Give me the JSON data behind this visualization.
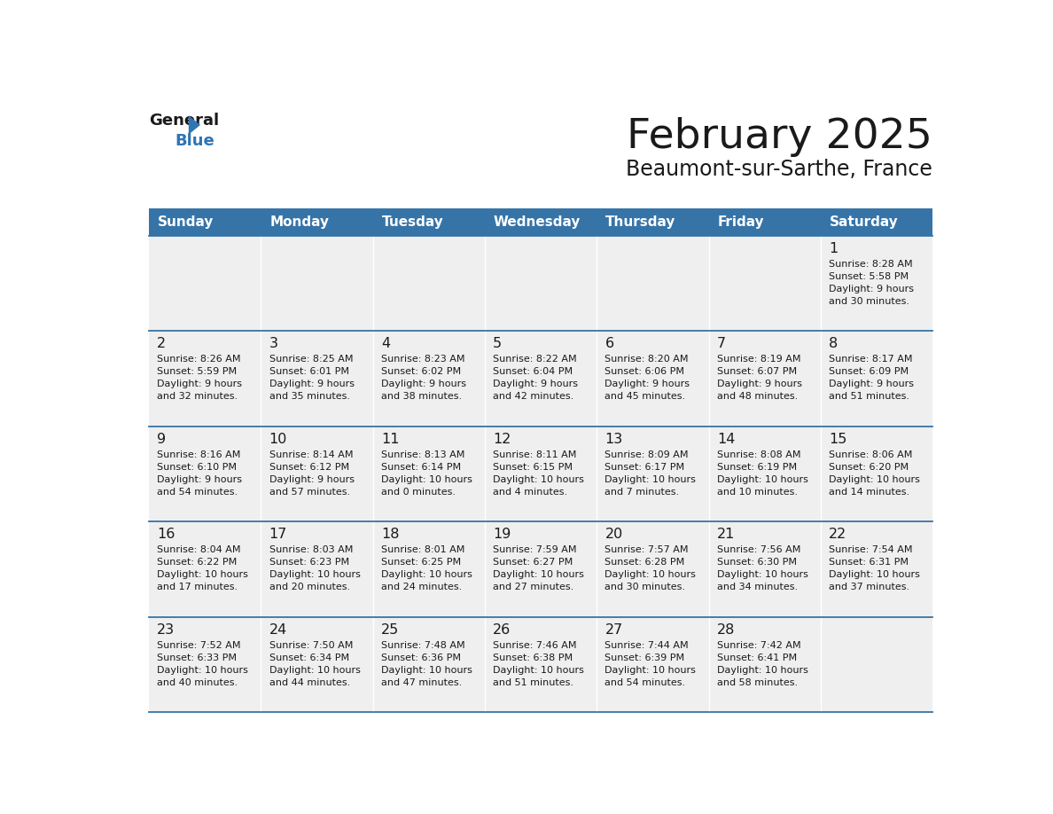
{
  "title": "February 2025",
  "subtitle": "Beaumont-sur-Sarthe, France",
  "days_of_week": [
    "Sunday",
    "Monday",
    "Tuesday",
    "Wednesday",
    "Thursday",
    "Friday",
    "Saturday"
  ],
  "header_bg": "#3674A8",
  "header_text": "#FFFFFF",
  "row_bg": "#EFEFEF",
  "cell_border_color": "#3674A8",
  "day_number_color": "#1a1a1a",
  "info_text_color": "#1a1a1a",
  "title_color": "#1a1a1a",
  "subtitle_color": "#1a1a1a",
  "logo_general_color": "#1a1a1a",
  "logo_blue_color": "#2E75B6",
  "logo_triangle_color": "#2E75B6",
  "weeks": [
    [
      {
        "day": null,
        "sunrise": null,
        "sunset": null,
        "daylight": null
      },
      {
        "day": null,
        "sunrise": null,
        "sunset": null,
        "daylight": null
      },
      {
        "day": null,
        "sunrise": null,
        "sunset": null,
        "daylight": null
      },
      {
        "day": null,
        "sunrise": null,
        "sunset": null,
        "daylight": null
      },
      {
        "day": null,
        "sunrise": null,
        "sunset": null,
        "daylight": null
      },
      {
        "day": null,
        "sunrise": null,
        "sunset": null,
        "daylight": null
      },
      {
        "day": 1,
        "sunrise": "8:28 AM",
        "sunset": "5:58 PM",
        "daylight": "9 hours\nand 30 minutes."
      }
    ],
    [
      {
        "day": 2,
        "sunrise": "8:26 AM",
        "sunset": "5:59 PM",
        "daylight": "9 hours\nand 32 minutes."
      },
      {
        "day": 3,
        "sunrise": "8:25 AM",
        "sunset": "6:01 PM",
        "daylight": "9 hours\nand 35 minutes."
      },
      {
        "day": 4,
        "sunrise": "8:23 AM",
        "sunset": "6:02 PM",
        "daylight": "9 hours\nand 38 minutes."
      },
      {
        "day": 5,
        "sunrise": "8:22 AM",
        "sunset": "6:04 PM",
        "daylight": "9 hours\nand 42 minutes."
      },
      {
        "day": 6,
        "sunrise": "8:20 AM",
        "sunset": "6:06 PM",
        "daylight": "9 hours\nand 45 minutes."
      },
      {
        "day": 7,
        "sunrise": "8:19 AM",
        "sunset": "6:07 PM",
        "daylight": "9 hours\nand 48 minutes."
      },
      {
        "day": 8,
        "sunrise": "8:17 AM",
        "sunset": "6:09 PM",
        "daylight": "9 hours\nand 51 minutes."
      }
    ],
    [
      {
        "day": 9,
        "sunrise": "8:16 AM",
        "sunset": "6:10 PM",
        "daylight": "9 hours\nand 54 minutes."
      },
      {
        "day": 10,
        "sunrise": "8:14 AM",
        "sunset": "6:12 PM",
        "daylight": "9 hours\nand 57 minutes."
      },
      {
        "day": 11,
        "sunrise": "8:13 AM",
        "sunset": "6:14 PM",
        "daylight": "10 hours\nand 0 minutes."
      },
      {
        "day": 12,
        "sunrise": "8:11 AM",
        "sunset": "6:15 PM",
        "daylight": "10 hours\nand 4 minutes."
      },
      {
        "day": 13,
        "sunrise": "8:09 AM",
        "sunset": "6:17 PM",
        "daylight": "10 hours\nand 7 minutes."
      },
      {
        "day": 14,
        "sunrise": "8:08 AM",
        "sunset": "6:19 PM",
        "daylight": "10 hours\nand 10 minutes."
      },
      {
        "day": 15,
        "sunrise": "8:06 AM",
        "sunset": "6:20 PM",
        "daylight": "10 hours\nand 14 minutes."
      }
    ],
    [
      {
        "day": 16,
        "sunrise": "8:04 AM",
        "sunset": "6:22 PM",
        "daylight": "10 hours\nand 17 minutes."
      },
      {
        "day": 17,
        "sunrise": "8:03 AM",
        "sunset": "6:23 PM",
        "daylight": "10 hours\nand 20 minutes."
      },
      {
        "day": 18,
        "sunrise": "8:01 AM",
        "sunset": "6:25 PM",
        "daylight": "10 hours\nand 24 minutes."
      },
      {
        "day": 19,
        "sunrise": "7:59 AM",
        "sunset": "6:27 PM",
        "daylight": "10 hours\nand 27 minutes."
      },
      {
        "day": 20,
        "sunrise": "7:57 AM",
        "sunset": "6:28 PM",
        "daylight": "10 hours\nand 30 minutes."
      },
      {
        "day": 21,
        "sunrise": "7:56 AM",
        "sunset": "6:30 PM",
        "daylight": "10 hours\nand 34 minutes."
      },
      {
        "day": 22,
        "sunrise": "7:54 AM",
        "sunset": "6:31 PM",
        "daylight": "10 hours\nand 37 minutes."
      }
    ],
    [
      {
        "day": 23,
        "sunrise": "7:52 AM",
        "sunset": "6:33 PM",
        "daylight": "10 hours\nand 40 minutes."
      },
      {
        "day": 24,
        "sunrise": "7:50 AM",
        "sunset": "6:34 PM",
        "daylight": "10 hours\nand 44 minutes."
      },
      {
        "day": 25,
        "sunrise": "7:48 AM",
        "sunset": "6:36 PM",
        "daylight": "10 hours\nand 47 minutes."
      },
      {
        "day": 26,
        "sunrise": "7:46 AM",
        "sunset": "6:38 PM",
        "daylight": "10 hours\nand 51 minutes."
      },
      {
        "day": 27,
        "sunrise": "7:44 AM",
        "sunset": "6:39 PM",
        "daylight": "10 hours\nand 54 minutes."
      },
      {
        "day": 28,
        "sunrise": "7:42 AM",
        "sunset": "6:41 PM",
        "daylight": "10 hours\nand 58 minutes."
      },
      {
        "day": null,
        "sunrise": null,
        "sunset": null,
        "daylight": null
      }
    ]
  ]
}
